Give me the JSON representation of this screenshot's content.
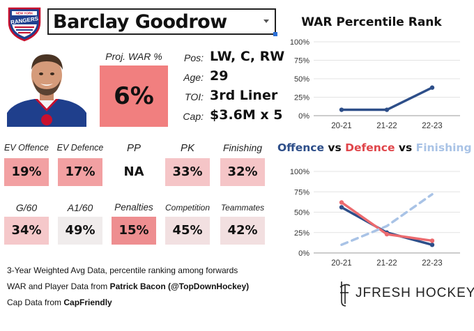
{
  "player": {
    "name": "Barclay Goodrow"
  },
  "team_logo": {
    "icon": "new-york-rangers-logo",
    "text_top": "NEW YORK",
    "text_main": "RANGERS"
  },
  "proj_war": {
    "label": "Proj. WAR %",
    "value": "6%",
    "color": "#f17f7f"
  },
  "info": [
    {
      "key": "Pos:",
      "value": "LW, C, RW"
    },
    {
      "key": "Age:",
      "value": "29"
    },
    {
      "key": "TOI:",
      "value": "3rd Liner"
    },
    {
      "key": "Cap:",
      "value": "$3.6M x 5"
    }
  ],
  "stats": [
    {
      "label": "EV Offence",
      "value": "19%",
      "color": "#f2a0a2"
    },
    {
      "label": "EV Defence",
      "value": "17%",
      "color": "#f2a0a2"
    },
    {
      "label": "PP",
      "value": "NA",
      "color": "#ffffff"
    },
    {
      "label": "PK",
      "value": "33%",
      "color": "#f5c5c7"
    },
    {
      "label": "Finishing",
      "value": "32%",
      "color": "#f5c5c7"
    },
    {
      "label": "G/60",
      "value": "34%",
      "color": "#f5c8ca"
    },
    {
      "label": "A1/60",
      "value": "49%",
      "color": "#f0ecec"
    },
    {
      "label": "Penalties",
      "value": "15%",
      "color": "#ee8e90"
    },
    {
      "label": "Competition",
      "value": "45%",
      "color": "#f2e0e1"
    },
    {
      "label": "Teammates",
      "value": "42%",
      "color": "#f2dfe0"
    }
  ],
  "footer": {
    "line1": "3-Year Weighted Avg Data, percentile ranking among forwards",
    "line2_prefix": "WAR and Player Data from ",
    "line2_bold": "Patrick Bacon (@TopDownHockey)",
    "line3_prefix": "Cap Data from ",
    "line3_bold": "CapFriendly"
  },
  "brand": {
    "text": "JFRESH HOCKEY"
  },
  "chart_data": [
    {
      "type": "line",
      "title": "WAR Percentile Rank",
      "categories": [
        "20-21",
        "21-22",
        "22-23"
      ],
      "series": [
        {
          "values": [
            8,
            8,
            38
          ],
          "color": "#2d4e89"
        }
      ],
      "ylim": [
        0,
        100
      ],
      "yticks": [
        "0%",
        "25%",
        "50%",
        "75%",
        "100%"
      ],
      "grid": true
    },
    {
      "type": "line",
      "title_parts": [
        {
          "text": "Offence",
          "color": "#2d4e89"
        },
        {
          "text": " vs ",
          "color": "#111111"
        },
        {
          "text": "Defence",
          "color": "#e0454a"
        },
        {
          "text": " vs ",
          "color": "#111111"
        },
        {
          "text": "Finishing",
          "color": "#a9c3e6"
        }
      ],
      "categories": [
        "20-21",
        "21-22",
        "22-23"
      ],
      "series": [
        {
          "name": "Offence",
          "values": [
            56,
            25,
            10
          ],
          "color": "#2d4e89",
          "dash": false
        },
        {
          "name": "Defence",
          "values": [
            62,
            23,
            15
          ],
          "color": "#ec6a6e",
          "dash": false
        },
        {
          "name": "Finishing",
          "values": [
            10,
            33,
            72
          ],
          "color": "#a9c3e6",
          "dash": true
        }
      ],
      "ylim": [
        0,
        100
      ],
      "yticks": [
        "0%",
        "25%",
        "50%",
        "75%",
        "100%"
      ],
      "grid": true
    }
  ]
}
